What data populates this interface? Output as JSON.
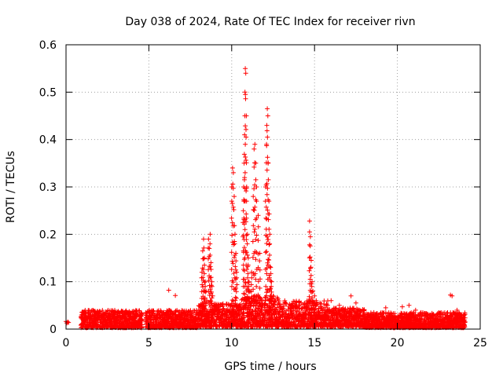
{
  "chart_data": {
    "type": "scatter",
    "title": "Day 038 of 2024, Rate Of TEC Index for receiver rivn",
    "xlabel": "GPS time / hours",
    "ylabel": "ROTI / TECUs",
    "xlim": [
      0,
      25
    ],
    "ylim": [
      0,
      0.6
    ],
    "xticks": [
      0,
      5,
      10,
      15,
      20,
      25
    ],
    "yticks": [
      0,
      0.1,
      0.2,
      0.3,
      0.4,
      0.5,
      0.6
    ],
    "ytick_labels": [
      "0",
      "0.1",
      "0.2",
      "0.3",
      "0.4",
      "0.5",
      "0.6"
    ],
    "grid": true,
    "marker": "+",
    "color": "#ff0000",
    "series": [
      {
        "name": "ROTI",
        "x": [
          0.0,
          0.05,
          0.1,
          0.15,
          6.2,
          6.6,
          8.2,
          8.25,
          8.3,
          8.35,
          8.4,
          8.45,
          8.5,
          8.6,
          8.65,
          8.7,
          8.75,
          8.8,
          8.85,
          10.0,
          10.05,
          10.1,
          10.15,
          10.2,
          10.25,
          10.3,
          10.7,
          10.72,
          10.75,
          10.78,
          10.8,
          10.82,
          10.85,
          10.88,
          10.9,
          10.95,
          11.0,
          11.05,
          11.1,
          11.2,
          11.3,
          11.35,
          11.4,
          11.45,
          11.5,
          11.6,
          11.7,
          12.05,
          12.1,
          12.12,
          12.15,
          12.18,
          12.2,
          12.25,
          12.3,
          12.35,
          12.4,
          12.5,
          12.55,
          14.5,
          14.7,
          14.75,
          14.8,
          14.85,
          14.9,
          15.0,
          15.1,
          16.0,
          16.5,
          17.2,
          17.5,
          18.0,
          19.3,
          20.3,
          20.7,
          21.1,
          23.2,
          23.3,
          23.6
        ],
        "y": [
          0.016,
          0.013,
          0.015,
          0.014,
          0.082,
          0.071,
          0.12,
          0.165,
          0.19,
          0.15,
          0.1,
          0.08,
          0.06,
          0.19,
          0.17,
          0.2,
          0.14,
          0.1,
          0.07,
          0.3,
          0.34,
          0.33,
          0.28,
          0.2,
          0.16,
          0.12,
          0.25,
          0.3,
          0.35,
          0.41,
          0.5,
          0.55,
          0.54,
          0.45,
          0.3,
          0.2,
          0.15,
          0.1,
          0.08,
          0.12,
          0.28,
          0.38,
          0.39,
          0.35,
          0.3,
          0.24,
          0.16,
          0.3,
          0.39,
          0.43,
          0.465,
          0.45,
          0.35,
          0.27,
          0.2,
          0.13,
          0.1,
          0.07,
          0.05,
          0.05,
          0.228,
          0.195,
          0.145,
          0.1,
          0.08,
          0.07,
          0.06,
          0.06,
          0.05,
          0.07,
          0.055,
          0.04,
          0.045,
          0.047,
          0.05,
          0.04,
          0.072,
          0.07,
          0.04
        ]
      }
    ],
    "background_band": [
      {
        "x_start": 0.9,
        "x_end": 4.6,
        "y_min": 0.003,
        "y_max": 0.04
      },
      {
        "x_start": 4.8,
        "x_end": 8.0,
        "y_min": 0.003,
        "y_max": 0.04
      },
      {
        "x_start": 8.0,
        "x_end": 10.6,
        "y_min": 0.005,
        "y_max": 0.055
      },
      {
        "x_start": 10.6,
        "x_end": 12.8,
        "y_min": 0.005,
        "y_max": 0.07
      },
      {
        "x_start": 12.8,
        "x_end": 15.8,
        "y_min": 0.005,
        "y_max": 0.06
      },
      {
        "x_start": 15.8,
        "x_end": 18.0,
        "y_min": 0.005,
        "y_max": 0.045
      },
      {
        "x_start": 18.0,
        "x_end": 24.1,
        "y_min": 0.003,
        "y_max": 0.035
      }
    ]
  }
}
